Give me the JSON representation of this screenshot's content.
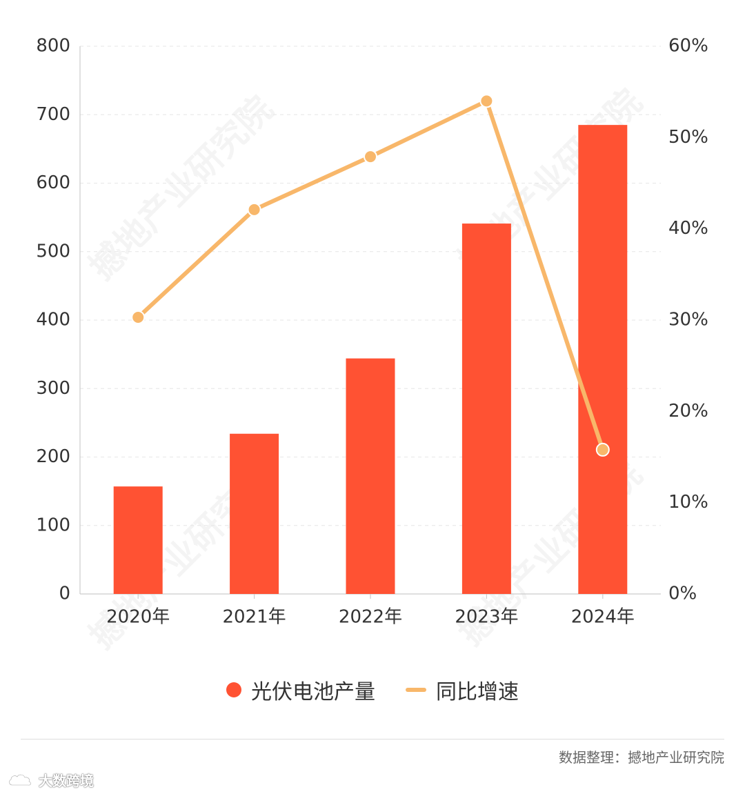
{
  "chart_data": {
    "type": "bar",
    "categories": [
      "2020年",
      "2021年",
      "2022年",
      "2023年",
      "2024年"
    ],
    "series": [
      {
        "name": "光伏电池产量",
        "type": "bar",
        "axis": "left",
        "values": [
          157,
          234,
          344,
          541,
          685
        ],
        "color": "#ff5233"
      },
      {
        "name": "同比增速",
        "type": "line",
        "axis": "right",
        "values": [
          30.3,
          42.1,
          47.9,
          54.0,
          15.8
        ],
        "color": "#f8b76a"
      }
    ],
    "y_left": {
      "ylim": [
        0,
        800
      ],
      "ticks": [
        "0",
        "100",
        "200",
        "300",
        "400",
        "500",
        "600",
        "700",
        "800"
      ]
    },
    "y_right": {
      "ylim": [
        0,
        60
      ],
      "ticks": [
        "0%",
        "10%",
        "20%",
        "30%",
        "40%",
        "50%",
        "60%"
      ]
    },
    "grid": true,
    "legend_position": "bottom-center"
  },
  "source_label": "数据整理：撼地产业研究院",
  "watermark_text": "撼地产业研究院",
  "platform_mark": "大数跨境",
  "icons": {
    "platform": "cloud-icon"
  }
}
